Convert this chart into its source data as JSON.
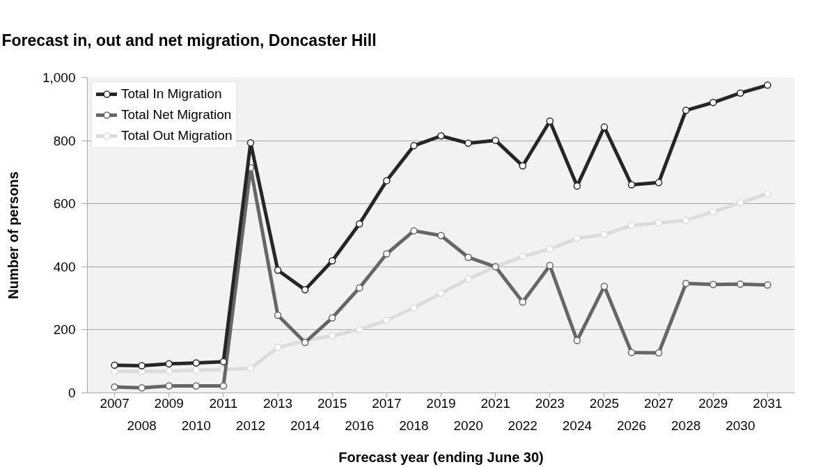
{
  "chart_data": {
    "type": "line",
    "title": "Forecast in, out and net migration, Doncaster Hill",
    "xlabel": "Forecast year (ending June 30)",
    "ylabel": "Number of persons",
    "categories": [
      "2007",
      "2008",
      "2009",
      "2010",
      "2011",
      "2012",
      "2013",
      "2014",
      "2015",
      "2016",
      "2017",
      "2018",
      "2019",
      "2020",
      "2021",
      "2022",
      "2023",
      "2024",
      "2025",
      "2026",
      "2027",
      "2028",
      "2029",
      "2030",
      "2031"
    ],
    "series": [
      {
        "name": "Total In Migration",
        "color": "#262626",
        "values": [
          88,
          86,
          92,
          95,
          99,
          793,
          389,
          327,
          419,
          536,
          673,
          784,
          815,
          792,
          801,
          720,
          862,
          656,
          843,
          660,
          667,
          896,
          921,
          951,
          976
        ]
      },
      {
        "name": "Total Net Migration",
        "color": "#666666",
        "values": [
          19,
          16,
          22,
          22,
          22,
          714,
          246,
          160,
          238,
          333,
          441,
          514,
          499,
          430,
          400,
          288,
          404,
          166,
          338,
          128,
          127,
          347,
          344,
          345,
          342
        ]
      },
      {
        "name": "Total Out Migration",
        "color": "#dcdcdc",
        "values": [
          68,
          68,
          69,
          72,
          74,
          78,
          144,
          166,
          181,
          201,
          230,
          270,
          316,
          361,
          400,
          433,
          456,
          490,
          502,
          531,
          539,
          547,
          575,
          603,
          632
        ]
      }
    ],
    "ylim": [
      0,
      1000
    ],
    "yticks": [
      0,
      200,
      400,
      600,
      800,
      {
        "value": 1000,
        "label": "1,000"
      }
    ],
    "grid": "y",
    "legend": "top left",
    "marker": "circle",
    "line_style": "solid"
  }
}
